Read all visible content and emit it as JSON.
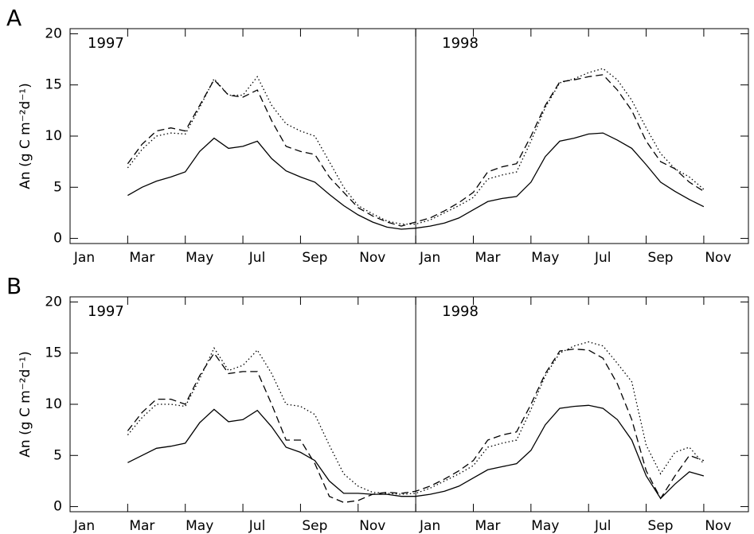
{
  "chart_data": [
    {
      "type": "line",
      "panel_label": "A",
      "ylabel": "An (g C m⁻²d⁻¹)",
      "annotations": [
        "1997",
        "1998"
      ],
      "xlim": [
        0,
        23.55
      ],
      "ylim": [
        -0.5,
        20.5
      ],
      "yticks": [
        0,
        5,
        10,
        15,
        20
      ],
      "xticks": [
        {
          "value": 0,
          "label": "Jan"
        },
        {
          "value": 2,
          "label": "Mar"
        },
        {
          "value": 4,
          "label": "May"
        },
        {
          "value": 6,
          "label": "Jul"
        },
        {
          "value": 8,
          "label": "Sep"
        },
        {
          "value": 10,
          "label": "Nov"
        },
        {
          "value": 12,
          "label": "Jan"
        },
        {
          "value": 14,
          "label": "Mar"
        },
        {
          "value": 16,
          "label": "May"
        },
        {
          "value": 18,
          "label": "Jul"
        },
        {
          "value": 20,
          "label": "Sep"
        },
        {
          "value": 22,
          "label": "Nov"
        }
      ],
      "divider_x": 12,
      "x": [
        2.0,
        2.5,
        3.0,
        3.5,
        4.0,
        4.5,
        5.0,
        5.5,
        6.0,
        6.5,
        7.0,
        7.5,
        8.0,
        8.5,
        9.0,
        9.5,
        10.0,
        10.5,
        11.0,
        11.5,
        12.0,
        12.5,
        13.0,
        13.5,
        14.0,
        14.5,
        15.0,
        15.5,
        16.0,
        16.5,
        17.0,
        17.5,
        18.0,
        18.5,
        19.0,
        19.5,
        20.0,
        20.5,
        21.0,
        21.5,
        22.0
      ],
      "series": [
        {
          "style": "solid",
          "color": "#000000",
          "values": [
            4.2,
            5.0,
            5.6,
            6.0,
            6.5,
            8.5,
            9.8,
            8.8,
            9.0,
            9.5,
            7.8,
            6.6,
            6.0,
            5.5,
            4.3,
            3.2,
            2.3,
            1.6,
            1.1,
            0.9,
            1.0,
            1.2,
            1.5,
            2.0,
            2.8,
            3.6,
            3.9,
            4.1,
            5.5,
            8.0,
            9.5,
            9.8,
            10.2,
            10.3,
            9.6,
            8.8,
            7.2,
            5.5,
            4.6,
            3.8,
            3.1
          ]
        },
        {
          "style": "dashed",
          "color": "#000000",
          "values": [
            7.3,
            9.2,
            10.5,
            10.8,
            10.5,
            13.0,
            15.5,
            14.0,
            13.8,
            14.5,
            11.5,
            9.0,
            8.5,
            8.2,
            6.0,
            4.5,
            3.0,
            2.2,
            1.6,
            1.2,
            1.6,
            2.0,
            2.7,
            3.5,
            4.5,
            6.5,
            7.0,
            7.3,
            10.0,
            13.0,
            15.3,
            15.5,
            15.8,
            16.0,
            14.5,
            12.5,
            9.5,
            7.5,
            6.8,
            5.5,
            4.6
          ]
        },
        {
          "style": "dotted",
          "color": "#000000",
          "values": [
            6.9,
            8.7,
            10.0,
            10.3,
            10.2,
            12.8,
            15.6,
            14.0,
            14.0,
            15.8,
            13.0,
            11.2,
            10.5,
            10.0,
            7.5,
            5.0,
            3.2,
            2.4,
            1.7,
            1.4,
            1.4,
            1.8,
            2.5,
            3.2,
            4.0,
            5.8,
            6.2,
            6.5,
            9.5,
            12.8,
            15.2,
            15.6,
            16.2,
            16.6,
            15.5,
            13.5,
            10.8,
            8.3,
            6.8,
            6.0,
            4.8
          ]
        }
      ]
    },
    {
      "type": "line",
      "panel_label": "B",
      "ylabel": "An (g C m⁻²d⁻¹)",
      "annotations": [
        "1997",
        "1998"
      ],
      "xlim": [
        0,
        23.55
      ],
      "ylim": [
        -0.5,
        20.5
      ],
      "yticks": [
        0,
        5,
        10,
        15,
        20
      ],
      "xticks": [
        {
          "value": 0,
          "label": "Jan"
        },
        {
          "value": 2,
          "label": "Mar"
        },
        {
          "value": 4,
          "label": "May"
        },
        {
          "value": 6,
          "label": "Jul"
        },
        {
          "value": 8,
          "label": "Sep"
        },
        {
          "value": 10,
          "label": "Nov"
        },
        {
          "value": 12,
          "label": "Jan"
        },
        {
          "value": 14,
          "label": "Mar"
        },
        {
          "value": 16,
          "label": "May"
        },
        {
          "value": 18,
          "label": "Jul"
        },
        {
          "value": 20,
          "label": "Sep"
        },
        {
          "value": 22,
          "label": "Nov"
        }
      ],
      "divider_x": 12,
      "x": [
        2.0,
        2.5,
        3.0,
        3.5,
        4.0,
        4.5,
        5.0,
        5.5,
        6.0,
        6.5,
        7.0,
        7.5,
        8.0,
        8.5,
        9.0,
        9.5,
        10.0,
        10.5,
        11.0,
        11.5,
        12.0,
        12.5,
        13.0,
        13.5,
        14.0,
        14.5,
        15.0,
        15.5,
        16.0,
        16.5,
        17.0,
        17.5,
        18.0,
        18.5,
        19.0,
        19.5,
        20.0,
        20.5,
        21.0,
        21.5,
        22.0
      ],
      "series": [
        {
          "style": "solid",
          "color": "#000000",
          "values": [
            4.3,
            5.0,
            5.7,
            5.9,
            6.2,
            8.2,
            9.5,
            8.3,
            8.5,
            9.4,
            7.8,
            5.8,
            5.3,
            4.5,
            2.5,
            1.3,
            1.3,
            1.2,
            1.2,
            1.0,
            1.0,
            1.2,
            1.5,
            2.0,
            2.8,
            3.6,
            3.9,
            4.2,
            5.5,
            8.0,
            9.6,
            9.8,
            9.9,
            9.6,
            8.5,
            6.5,
            3.0,
            0.8,
            2.2,
            3.4,
            3.0
          ]
        },
        {
          "style": "dashed",
          "color": "#000000",
          "values": [
            7.4,
            9.2,
            10.5,
            10.5,
            10.0,
            12.8,
            15.0,
            13.0,
            13.2,
            13.2,
            10.0,
            6.5,
            6.5,
            4.2,
            1.0,
            0.4,
            0.6,
            1.2,
            1.4,
            1.3,
            1.5,
            2.0,
            2.7,
            3.5,
            4.5,
            6.5,
            7.0,
            7.3,
            10.0,
            13.0,
            15.2,
            15.4,
            15.3,
            14.5,
            12.0,
            8.5,
            3.5,
            0.8,
            3.0,
            5.0,
            4.5
          ]
        },
        {
          "style": "dotted",
          "color": "#000000",
          "values": [
            7.0,
            8.7,
            10.0,
            10.0,
            9.8,
            12.5,
            15.5,
            13.3,
            13.8,
            15.3,
            13.0,
            10.0,
            9.8,
            9.0,
            6.0,
            3.2,
            2.0,
            1.4,
            1.3,
            1.2,
            1.3,
            1.8,
            2.5,
            3.2,
            4.0,
            5.8,
            6.2,
            6.5,
            9.5,
            12.8,
            15.0,
            15.7,
            16.1,
            15.7,
            14.0,
            12.2,
            6.0,
            3.2,
            5.3,
            5.8,
            4.2
          ]
        }
      ]
    }
  ]
}
